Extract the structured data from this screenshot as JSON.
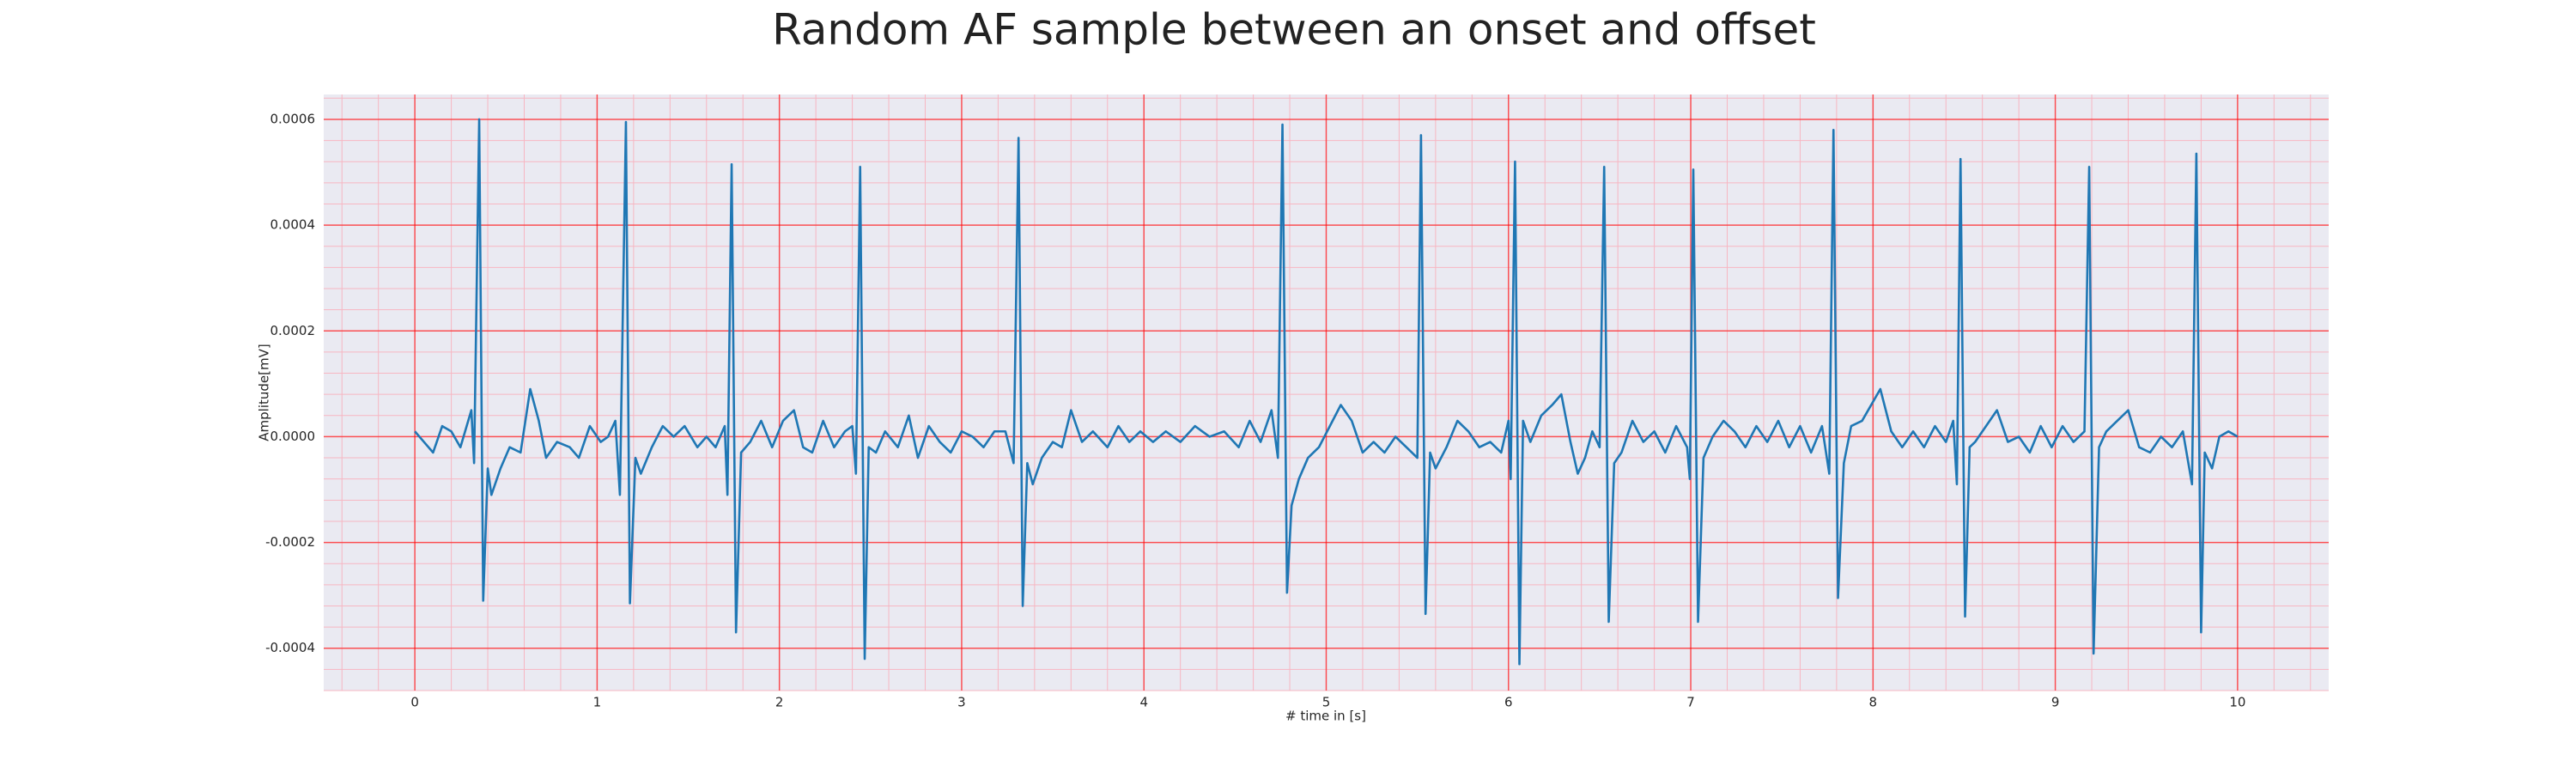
{
  "chart_data": {
    "type": "line",
    "title": "Random AF sample between an onset and offset",
    "x_label": "# time in [s]",
    "y_label": "Amplitude[mV]",
    "color": "#1f77b4",
    "grid": true,
    "minor_grid": true,
    "xlim": [
      -0.5,
      10.5
    ],
    "ylim": [
      -0.00048,
      0.000647
    ],
    "xticks": [
      0,
      1,
      2,
      3,
      4,
      5,
      6,
      7,
      8,
      9,
      10
    ],
    "yticks": [
      -0.0004,
      -0.0002,
      {
        "value": 0,
        "label": "0.0000"
      },
      0.0002,
      0.0004,
      0.0006
    ],
    "x": [
      0.0,
      0.05,
      0.1,
      0.15,
      0.2,
      0.25,
      0.31,
      0.325,
      0.353,
      0.375,
      0.4,
      0.42,
      0.47,
      0.52,
      0.58,
      0.633,
      0.68,
      0.72,
      0.78,
      0.85,
      0.9,
      0.96,
      1.02,
      1.06,
      1.1,
      1.125,
      1.158,
      1.18,
      1.21,
      1.24,
      1.3,
      1.36,
      1.42,
      1.48,
      1.55,
      1.6,
      1.65,
      1.7,
      1.715,
      1.738,
      1.762,
      1.79,
      1.84,
      1.9,
      1.96,
      2.02,
      2.08,
      2.13,
      2.18,
      2.24,
      2.3,
      2.36,
      2.4,
      2.42,
      2.443,
      2.468,
      2.49,
      2.53,
      2.58,
      2.65,
      2.71,
      2.76,
      2.82,
      2.88,
      2.94,
      3.0,
      3.06,
      3.12,
      3.18,
      3.24,
      3.285,
      3.312,
      3.335,
      3.36,
      3.39,
      3.44,
      3.5,
      3.55,
      3.6,
      3.66,
      3.72,
      3.8,
      3.86,
      3.92,
      3.98,
      4.05,
      4.12,
      4.2,
      4.28,
      4.36,
      4.44,
      4.52,
      4.58,
      4.64,
      4.7,
      4.735,
      4.76,
      4.785,
      4.81,
      4.85,
      4.9,
      4.96,
      5.02,
      5.08,
      5.14,
      5.2,
      5.26,
      5.32,
      5.38,
      5.44,
      5.5,
      5.52,
      5.545,
      5.57,
      5.6,
      5.66,
      5.72,
      5.78,
      5.84,
      5.9,
      5.96,
      6.0,
      6.012,
      6.036,
      6.06,
      6.08,
      6.12,
      6.18,
      6.24,
      6.29,
      6.34,
      6.38,
      6.42,
      6.46,
      6.5,
      6.525,
      6.55,
      6.58,
      6.62,
      6.68,
      6.74,
      6.8,
      6.86,
      6.92,
      6.98,
      6.995,
      7.014,
      7.04,
      7.07,
      7.12,
      7.18,
      7.24,
      7.3,
      7.36,
      7.42,
      7.48,
      7.54,
      7.6,
      7.66,
      7.72,
      7.76,
      7.783,
      7.808,
      7.84,
      7.88,
      7.94,
      8.04,
      8.1,
      8.16,
      8.22,
      8.28,
      8.34,
      8.4,
      8.44,
      8.46,
      8.48,
      8.505,
      8.53,
      8.56,
      8.62,
      8.68,
      8.74,
      8.8,
      8.86,
      8.92,
      8.98,
      9.04,
      9.1,
      9.16,
      9.186,
      9.21,
      9.24,
      9.28,
      9.34,
      9.4,
      9.46,
      9.52,
      9.58,
      9.64,
      9.7,
      9.75,
      9.774,
      9.8,
      9.82,
      9.86,
      9.9,
      9.95,
      10.0
    ],
    "values": [
      1e-05,
      -1e-05,
      -3e-05,
      2e-05,
      1e-05,
      -2e-05,
      5e-05,
      -5e-05,
      0.0006,
      -0.00031,
      -6e-05,
      -0.00011,
      -6e-05,
      -2e-05,
      -3e-05,
      9e-05,
      3e-05,
      -4e-05,
      -1e-05,
      -2e-05,
      -4e-05,
      2e-05,
      -1e-05,
      0.0,
      3e-05,
      -0.00011,
      0.000595,
      -0.000315,
      -4e-05,
      -7e-05,
      -2e-05,
      2e-05,
      0.0,
      2e-05,
      -2e-05,
      0.0,
      -2e-05,
      2e-05,
      -0.00011,
      0.000515,
      -0.00037,
      -3e-05,
      -1e-05,
      3e-05,
      -2e-05,
      3e-05,
      5e-05,
      -2e-05,
      -3e-05,
      3e-05,
      -2e-05,
      1e-05,
      2e-05,
      -7e-05,
      0.00051,
      -0.00042,
      -2e-05,
      -3e-05,
      1e-05,
      -2e-05,
      4e-05,
      -4e-05,
      2e-05,
      -1e-05,
      -3e-05,
      1e-05,
      0.0,
      -2e-05,
      1e-05,
      1e-05,
      -5e-05,
      0.000565,
      -0.00032,
      -5e-05,
      -9e-05,
      -4e-05,
      -1e-05,
      -2e-05,
      5e-05,
      -1e-05,
      1e-05,
      -2e-05,
      2e-05,
      -1e-05,
      1e-05,
      -1e-05,
      1e-05,
      -1e-05,
      2e-05,
      0.0,
      1e-05,
      -2e-05,
      3e-05,
      -1e-05,
      5e-05,
      -4e-05,
      0.00059,
      -0.000295,
      -0.00013,
      -8e-05,
      -4e-05,
      -2e-05,
      2e-05,
      6e-05,
      3e-05,
      -3e-05,
      -1e-05,
      -3e-05,
      0.0,
      -2e-05,
      -4e-05,
      0.00057,
      -0.000335,
      -3e-05,
      -6e-05,
      -2e-05,
      3e-05,
      1e-05,
      -2e-05,
      -1e-05,
      -3e-05,
      3e-05,
      -8e-05,
      0.00052,
      -0.00043,
      3e-05,
      -1e-05,
      4e-05,
      6e-05,
      8e-05,
      -1e-05,
      -7e-05,
      -4e-05,
      1e-05,
      -2e-05,
      0.00051,
      -0.00035,
      -5e-05,
      -3e-05,
      3e-05,
      -1e-05,
      1e-05,
      -3e-05,
      2e-05,
      -2e-05,
      -8e-05,
      0.000505,
      -0.00035,
      -4e-05,
      0.0,
      3e-05,
      1e-05,
      -2e-05,
      2e-05,
      -1e-05,
      3e-05,
      -2e-05,
      2e-05,
      -3e-05,
      2e-05,
      -7e-05,
      0.00058,
      -0.000305,
      -5e-05,
      2e-05,
      3e-05,
      9e-05,
      1e-05,
      -2e-05,
      1e-05,
      -2e-05,
      2e-05,
      -1e-05,
      3e-05,
      -9e-05,
      0.000525,
      -0.00034,
      -2e-05,
      -1e-05,
      2e-05,
      5e-05,
      -1e-05,
      0.0,
      -3e-05,
      2e-05,
      -2e-05,
      2e-05,
      -1e-05,
      1e-05,
      0.00051,
      -0.00041,
      -2e-05,
      1e-05,
      3e-05,
      5e-05,
      -2e-05,
      -3e-05,
      0.0,
      -2e-05,
      1e-05,
      -9e-05,
      0.000535,
      -0.00037,
      -3e-05,
      -6e-05,
      0.0,
      1e-05,
      0.0
    ]
  }
}
